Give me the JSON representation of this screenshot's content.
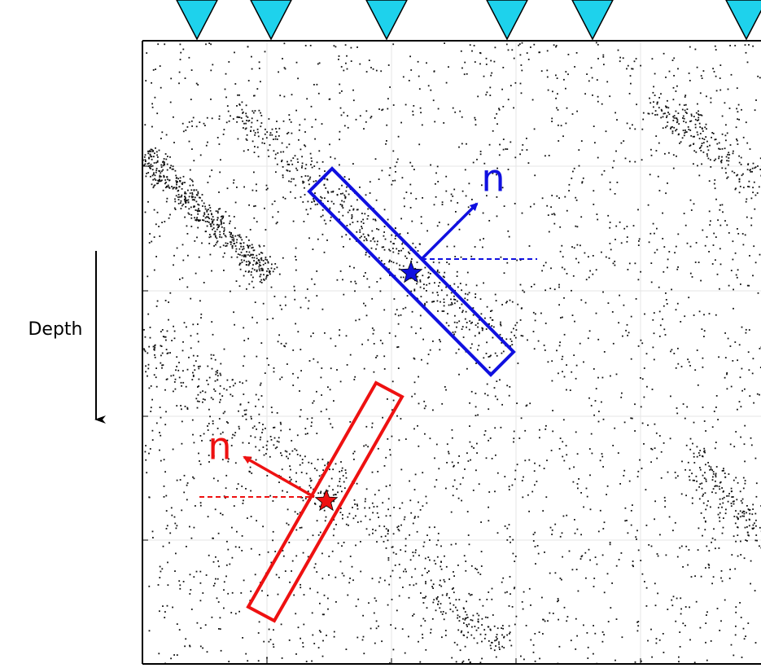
{
  "labels": {
    "depth": "Depth",
    "blue_normal": "n",
    "red_normal": "n"
  }
}
